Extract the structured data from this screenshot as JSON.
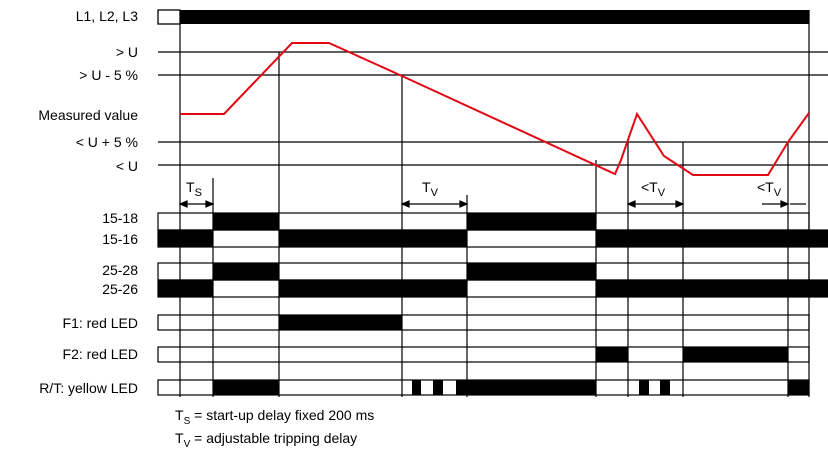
{
  "rows": {
    "l123": "L1, L2, L3",
    "over_u": "> U",
    "over_u_minus": "> U - 5 %",
    "measured": "Measured value",
    "under_u_plus": "< U + 5 %",
    "under_u": "< U",
    "r15_18": "15-18",
    "r15_16": "15-16",
    "r25_28": "25-28",
    "r25_26": "25-26",
    "f1": "F1: red LED",
    "f2": "F2: red LED",
    "rt": "R/T: yellow LED"
  },
  "timing": {
    "ts_main": "T",
    "ts_sub": "S",
    "tv_main": "T",
    "tv_sub": "V",
    "lt_tv_prefix": "<T",
    "lt_tv_sub": "V"
  },
  "legend": {
    "ts_main": "T",
    "ts_sub": "S",
    "ts_text": " = start-up delay fixed 200 ms",
    "tv_main": "T",
    "tv_sub": "V",
    "tv_text": " = adjustable tripping delay"
  },
  "colors": {
    "signal": "#e30613",
    "bar": "#000000",
    "line": "#000000"
  }
}
